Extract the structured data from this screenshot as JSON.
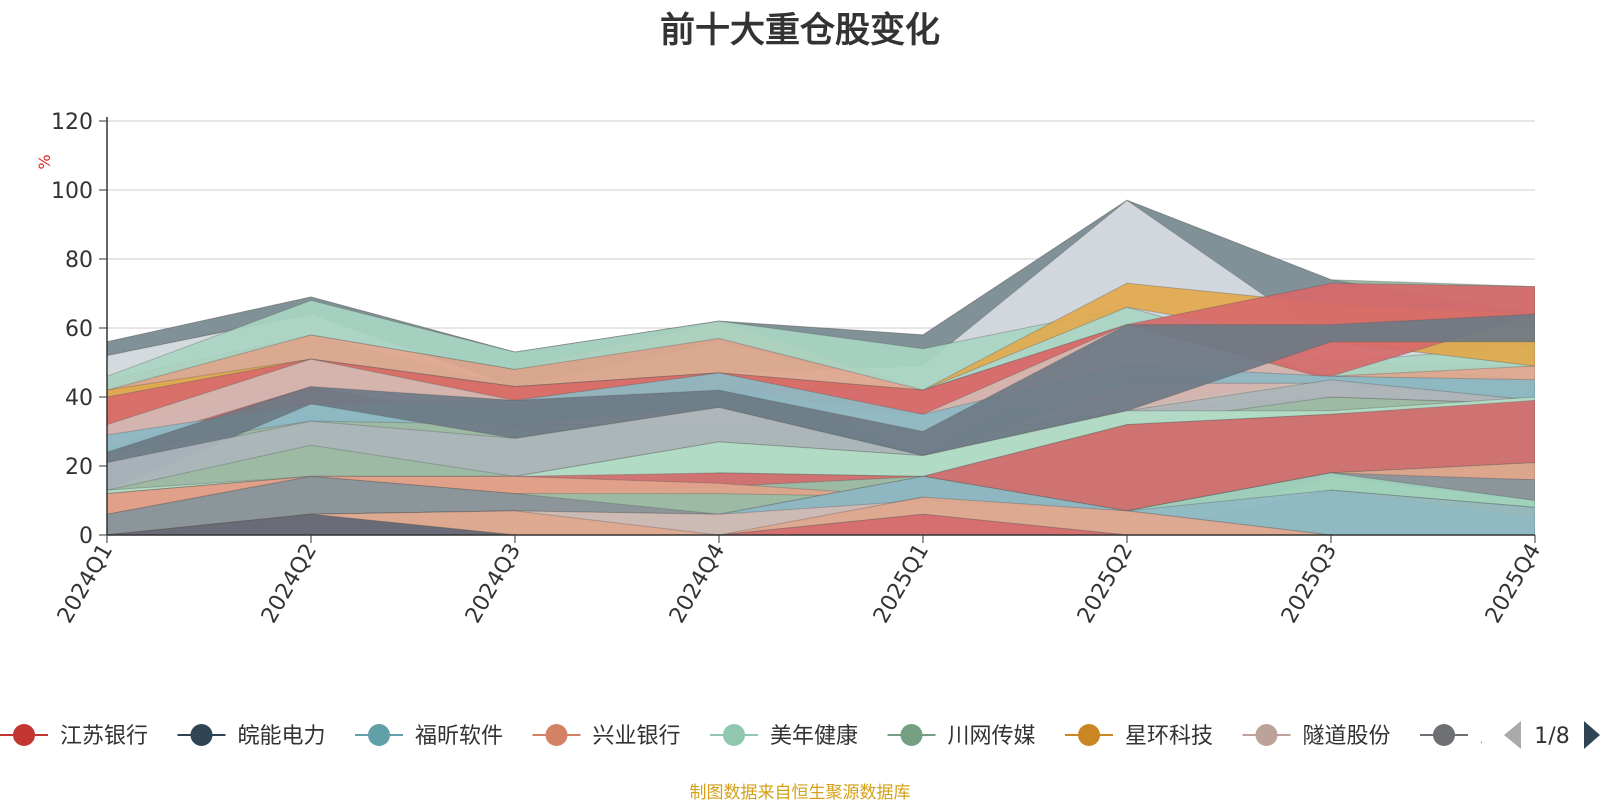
{
  "chart_data": {
    "type": "area",
    "title": "前十大重仓股变化",
    "ylabel": "%",
    "ylim": [
      0,
      120
    ],
    "yticks": [
      0,
      20,
      40,
      60,
      80,
      100,
      120
    ],
    "categories": [
      "2024Q1",
      "2024Q2",
      "2024Q3",
      "2024Q4",
      "2025Q1",
      "2025Q2",
      "2025Q3",
      "2025Q4"
    ],
    "layers": [
      {
        "color": "#9dbaa5",
        "values": [
          56,
          69,
          53,
          62,
          58,
          97,
          74,
          72
        ],
        "base": [
          0,
          0,
          0,
          0,
          0,
          0,
          0,
          0
        ]
      },
      {
        "color": "#7e8e96",
        "values": [
          56,
          69,
          53,
          62,
          58,
          97,
          74,
          64
        ],
        "base": [
          52,
          64,
          43,
          56,
          42,
          60,
          60,
          60
        ]
      },
      {
        "color": "#d9dde4",
        "values": [
          52,
          64,
          43,
          47,
          49,
          97,
          56,
          50
        ],
        "base": [
          45,
          58,
          43,
          47,
          42,
          60,
          50,
          45
        ]
      },
      {
        "color": "#e0a78e",
        "values": [
          45,
          58,
          48,
          62,
          42,
          61,
          50,
          49
        ],
        "base": [
          41,
          51,
          43,
          47,
          23,
          55,
          46,
          44
        ]
      },
      {
        "color": "#a8d5c2",
        "values": [
          46,
          68,
          53,
          62,
          54,
          66,
          50,
          55
        ],
        "base": [
          42,
          58,
          48,
          57,
          42,
          61,
          46,
          49
        ]
      },
      {
        "color": "#e2a94d",
        "values": [
          42,
          51,
          43,
          47,
          42,
          73,
          67,
          64
        ],
        "base": [
          32,
          43,
          39,
          42,
          42,
          66,
          56,
          49
        ]
      },
      {
        "color": "#d7696a",
        "values": [
          40,
          51,
          43,
          47,
          42,
          61,
          73,
          72
        ],
        "base": [
          28,
          38,
          37,
          42,
          35,
          37,
          46,
          64
        ]
      },
      {
        "color": "#d4bab3",
        "values": [
          32,
          51,
          39,
          37,
          35,
          61,
          45,
          39
        ],
        "base": [
          25,
          43,
          32,
          32,
          28,
          36,
          40,
          38
        ]
      },
      {
        "color": "#8db8c4",
        "values": [
          29,
          38,
          39,
          47,
          35,
          49,
          46,
          45
        ],
        "base": [
          24,
          33,
          32,
          37,
          23,
          44,
          44,
          39
        ]
      },
      {
        "color": "#6d7a86",
        "values": [
          24,
          43,
          39,
          42,
          30,
          61,
          61,
          64
        ],
        "base": [
          13,
          38,
          28,
          37,
          23,
          36,
          56,
          56
        ]
      },
      {
        "color": "#adb5bb",
        "values": [
          21,
          33,
          28,
          37,
          23,
          36,
          45,
          39
        ],
        "base": [
          13,
          26,
          17,
          27,
          23,
          32,
          40,
          38
        ]
      },
      {
        "color": "#b3ddc7",
        "values": [
          13,
          17,
          17,
          27,
          23,
          36,
          36,
          40
        ],
        "base": [
          12,
          17,
          12,
          18,
          17,
          32,
          35,
          38
        ]
      },
      {
        "color": "#d36c6c",
        "values": [
          12,
          17,
          17,
          18,
          17,
          32,
          35,
          39
        ],
        "base": [
          6,
          17,
          12,
          14,
          17,
          7,
          18,
          21
        ]
      },
      {
        "color": "#e2a48b",
        "values": [
          12,
          17,
          17,
          15,
          11,
          7,
          18,
          21
        ],
        "base": [
          6,
          17,
          12,
          12,
          11,
          7,
          17,
          16
        ]
      },
      {
        "color": "#8b9399",
        "values": [
          6,
          17,
          12,
          6,
          17,
          7,
          18,
          16
        ],
        "base": [
          0,
          6,
          7,
          0,
          11,
          0,
          17,
          10
        ]
      },
      {
        "color": "#e2a94d",
        "values": [
          0,
          6,
          7,
          0,
          11,
          7,
          13,
          8
        ],
        "base": [
          0,
          0,
          0,
          0,
          11,
          0,
          13,
          5
        ]
      },
      {
        "color": "#9fd3bd",
        "values": [
          0,
          6,
          7,
          0,
          11,
          7,
          18,
          10
        ],
        "base": [
          0,
          0,
          0,
          0,
          11,
          0,
          13,
          8
        ]
      },
      {
        "color": "#8fbac4",
        "values": [
          0,
          6,
          7,
          6,
          17,
          7,
          13,
          8
        ],
        "base": [
          0,
          0,
          0,
          0,
          11,
          0,
          0,
          0
        ]
      },
      {
        "color": "#d4bab3",
        "values": [
          0,
          6,
          7,
          6,
          10,
          7,
          0,
          0
        ],
        "base": [
          0,
          0,
          0,
          0,
          0,
          0,
          0,
          0
        ]
      },
      {
        "color": "#e0a78e",
        "values": [
          0,
          6,
          7,
          0,
          11,
          7,
          0,
          0
        ],
        "base": [
          0,
          0,
          0,
          0,
          6,
          0,
          0,
          0
        ]
      },
      {
        "color": "#d7696a",
        "values": [
          0,
          6,
          0,
          0,
          6,
          0,
          0,
          0
        ],
        "base": [
          0,
          0,
          0,
          0,
          0,
          0,
          0,
          0
        ]
      },
      {
        "color": "#5f6b77",
        "values": [
          0,
          6,
          0,
          0,
          0,
          0,
          0,
          0
        ],
        "base": [
          0,
          0,
          0,
          0,
          0,
          0,
          0,
          0
        ]
      }
    ],
    "legend": {
      "position": "bottom",
      "items": [
        {
          "label": "江苏银行",
          "color": "#c23531"
        },
        {
          "label": "皖能电力",
          "color": "#2f4554"
        },
        {
          "label": "福昕软件",
          "color": "#61a0a8"
        },
        {
          "label": "兴业银行",
          "color": "#d48265"
        },
        {
          "label": "美年健康",
          "color": "#91c7ae"
        },
        {
          "label": "川网传媒",
          "color": "#749f83"
        },
        {
          "label": "星环科技",
          "color": "#ca8622"
        },
        {
          "label": "隧道股份",
          "color": "#bda29a"
        },
        {
          "label": "三",
          "color": "#6e7074"
        }
      ],
      "page": "1/8"
    }
  },
  "source": "制图数据来自恒生聚源数据库"
}
